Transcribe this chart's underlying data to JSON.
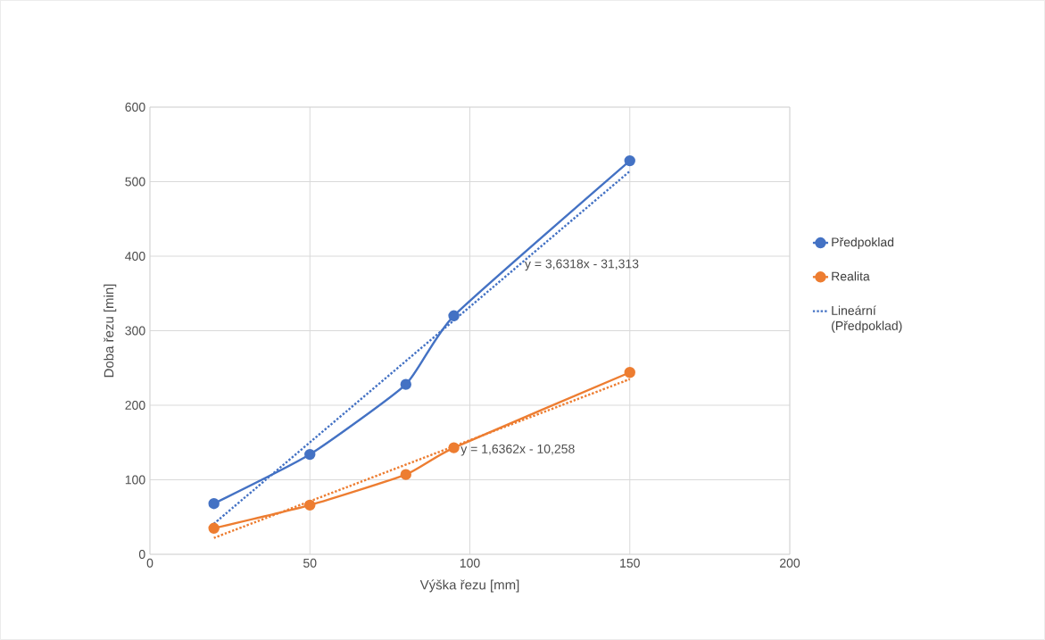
{
  "chart_data": {
    "type": "line",
    "xlabel": "Výška řezu [mm]",
    "ylabel": "Doba řezu [min]",
    "xlim": [
      0,
      200
    ],
    "xticks": [
      0,
      50,
      100,
      150,
      200
    ],
    "ylim": [
      0,
      600
    ],
    "yticks": [
      0,
      100,
      200,
      300,
      400,
      500,
      600
    ],
    "grid": true,
    "legend": "right",
    "marker": "circle",
    "line_style": "solid",
    "series": [
      {
        "name": "Předpoklad",
        "color": "#4472c4",
        "x": [
          20,
          50,
          80,
          95,
          150
        ],
        "values": [
          68,
          134,
          228,
          320,
          528
        ]
      },
      {
        "name": "Realita",
        "color": "#ed7d31",
        "x": [
          20,
          50,
          80,
          95,
          150
        ],
        "values": [
          35,
          66,
          107,
          143,
          244
        ]
      },
      {
        "name": "Lineární (Předpoklad)",
        "color": "#4472c4",
        "type": "line",
        "line_style": "dotted",
        "marker": "none",
        "x": [
          20,
          150
        ],
        "values": [
          41,
          514
        ]
      },
      {
        "color": "#ed7d31",
        "type": "line",
        "line_style": "dotted",
        "marker": "none",
        "x": [
          20,
          150
        ],
        "values": [
          22,
          235
        ]
      }
    ],
    "annotations": [
      "y = 3,6318x - 31,313",
      "y = 1,6362x - 10,258"
    ]
  }
}
